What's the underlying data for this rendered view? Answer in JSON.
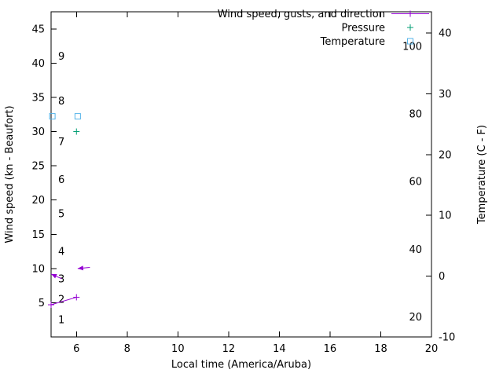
{
  "chart_data": {
    "type": "line",
    "grid": false,
    "legend_position": "top-right-inside",
    "axes": {
      "x": {
        "label": "Local time (America/Aruba)",
        "range": [
          5,
          20
        ],
        "ticks": [
          6,
          8,
          10,
          12,
          14,
          16,
          18,
          20
        ]
      },
      "y_left": {
        "label": "Wind speed (kn - Beaufort)",
        "range": [
          0,
          47.5
        ],
        "ticks": [
          5,
          10,
          15,
          20,
          25,
          30,
          35,
          40,
          45
        ],
        "inner_scale_name": "Beaufort",
        "inner_labels": [
          {
            "text": "1",
            "value": 2.5
          },
          {
            "text": "2",
            "value": 5.5
          },
          {
            "text": "3",
            "value": 8.5
          },
          {
            "text": "4",
            "value": 12.5
          },
          {
            "text": "5",
            "value": 18
          },
          {
            "text": "6",
            "value": 23
          },
          {
            "text": "7",
            "value": 28.5
          },
          {
            "text": "8",
            "value": 34.5
          },
          {
            "text": "9",
            "value": 41
          }
        ]
      },
      "y_right": {
        "label": "Temperature (C - F)",
        "range": [
          -10,
          43.5
        ],
        "ticks": [
          -10,
          0,
          10,
          20,
          30,
          40
        ],
        "inner_scale_name": "Fahrenheit",
        "inner_labels": [
          {
            "text": "20",
            "value": -6.7
          },
          {
            "text": "40",
            "value": 4.4
          },
          {
            "text": "60",
            "value": 15.6
          },
          {
            "text": "80",
            "value": 26.7
          },
          {
            "text": "100",
            "value": 37.8
          }
        ]
      }
    },
    "legend": [
      {
        "label": "Wind speed, gusts, and direction",
        "color": "#9400d3",
        "sample": "line-plus"
      },
      {
        "label": "Pressure",
        "color": "#009e73",
        "sample": "plus"
      },
      {
        "label": "Temperature",
        "color": "#56b4e9",
        "sample": "square"
      }
    ],
    "series": [
      {
        "name": "wind_speed",
        "type": "line-plus",
        "color": "#9400d3",
        "axis": "y_left",
        "points": [
          {
            "x": 5,
            "y": 4.7
          },
          {
            "x": 6,
            "y": 5.8
          }
        ]
      },
      {
        "name": "wind_direction_vectors",
        "type": "vectors",
        "color": "#9400d3",
        "axis": "y_left",
        "vectors": [
          {
            "x": 5,
            "y": 9.2,
            "tail_dx": 0.42,
            "tail_dy": -0.7
          },
          {
            "x": 6.05,
            "y": 10.0,
            "tail_dx": 0.48,
            "tail_dy": 0.15
          }
        ]
      },
      {
        "name": "pressure",
        "type": "plus",
        "color": "#009e73",
        "axis": "y_left",
        "points": [
          {
            "x": 6,
            "y": 30.0
          }
        ]
      },
      {
        "name": "temperature",
        "type": "square",
        "color": "#56b4e9",
        "axis": "y_right",
        "points": [
          {
            "x": 5.05,
            "y": 26.3
          },
          {
            "x": 6.05,
            "y": 26.3
          }
        ]
      }
    ]
  }
}
